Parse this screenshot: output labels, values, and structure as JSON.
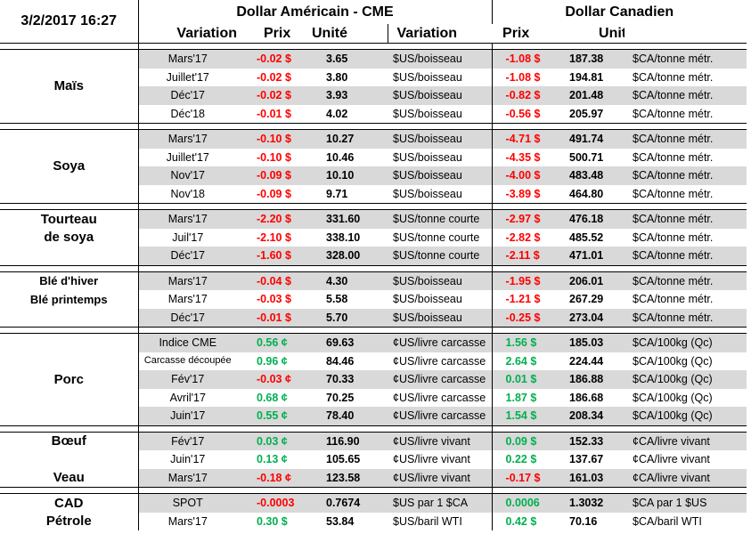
{
  "header": {
    "date": "3/2/2017 16:27",
    "usd_title": "Dollar Américain - CME",
    "cad_title": "Dollar Canadien",
    "col_variation": "Variation",
    "col_prix": "Prix",
    "col_unite": "Unité"
  },
  "colors": {
    "negative": "#ff0000",
    "positive": "#00b050",
    "shade": "#d9d9d9"
  },
  "groups": [
    {
      "name": [
        "Maïs"
      ],
      "rows": [
        {
          "month": "Mars'17",
          "usd_var": "-0.02 $",
          "usd_price": "3.65",
          "usd_unit": "$US/boisseau",
          "cad_var": "-1.08 $",
          "cad_price": "187.38",
          "cad_unit": "$CA/tonne métr.",
          "sign": "neg",
          "csign": "neg"
        },
        {
          "month": "Juillet'17",
          "usd_var": "-0.02 $",
          "usd_price": "3.80",
          "usd_unit": "$US/boisseau",
          "cad_var": "-1.08 $",
          "cad_price": "194.81",
          "cad_unit": "$CA/tonne métr.",
          "sign": "neg",
          "csign": "neg"
        },
        {
          "month": "Déc'17",
          "usd_var": "-0.02 $",
          "usd_price": "3.93",
          "usd_unit": "$US/boisseau",
          "cad_var": "-0.82 $",
          "cad_price": "201.48",
          "cad_unit": "$CA/tonne métr.",
          "sign": "neg",
          "csign": "neg"
        },
        {
          "month": "Déc'18",
          "usd_var": "-0.01 $",
          "usd_price": "4.02",
          "usd_unit": "$US/boisseau",
          "cad_var": "-0.56 $",
          "cad_price": "205.97",
          "cad_unit": "$CA/tonne métr.",
          "sign": "neg",
          "csign": "neg"
        }
      ]
    },
    {
      "name": [
        "Soya"
      ],
      "rows": [
        {
          "month": "Mars'17",
          "usd_var": "-0.10 $",
          "usd_price": "10.27",
          "usd_unit": "$US/boisseau",
          "cad_var": "-4.71 $",
          "cad_price": "491.74",
          "cad_unit": "$CA/tonne métr.",
          "sign": "neg",
          "csign": "neg"
        },
        {
          "month": "Juillet'17",
          "usd_var": "-0.10 $",
          "usd_price": "10.46",
          "usd_unit": "$US/boisseau",
          "cad_var": "-4.35 $",
          "cad_price": "500.71",
          "cad_unit": "$CA/tonne métr.",
          "sign": "neg",
          "csign": "neg"
        },
        {
          "month": "Nov'17",
          "usd_var": "-0.09 $",
          "usd_price": "10.10",
          "usd_unit": "$US/boisseau",
          "cad_var": "-4.00 $",
          "cad_price": "483.48",
          "cad_unit": "$CA/tonne métr.",
          "sign": "neg",
          "csign": "neg"
        },
        {
          "month": "Nov'18",
          "usd_var": "-0.09 $",
          "usd_price": "9.71",
          "usd_unit": "$US/boisseau",
          "cad_var": "-3.89 $",
          "cad_price": "464.80",
          "cad_unit": "$CA/tonne métr.",
          "sign": "neg",
          "csign": "neg"
        }
      ]
    },
    {
      "name": [
        "Tourteau",
        "de soya"
      ],
      "rows": [
        {
          "month": "Mars'17",
          "usd_var": "-2.20 $",
          "usd_price": "331.60",
          "usd_unit": "$US/tonne courte",
          "cad_var": "-2.97 $",
          "cad_price": "476.18",
          "cad_unit": "$CA/tonne métr.",
          "sign": "neg",
          "csign": "neg"
        },
        {
          "month": "Juil'17",
          "usd_var": "-2.10 $",
          "usd_price": "338.10",
          "usd_unit": "$US/tonne courte",
          "cad_var": "-2.82 $",
          "cad_price": "485.52",
          "cad_unit": "$CA/tonne métr.",
          "sign": "neg",
          "csign": "neg"
        },
        {
          "month": "Déc'17",
          "usd_var": "-1.60 $",
          "usd_price": "328.00",
          "usd_unit": "$US/tonne courte",
          "cad_var": "-2.11 $",
          "cad_price": "471.01",
          "cad_unit": "$CA/tonne métr.",
          "sign": "neg",
          "csign": "neg"
        }
      ]
    },
    {
      "name": [
        "Blé d'hiver",
        "Blé printemps"
      ],
      "rows": [
        {
          "month": "Mars'17",
          "usd_var": "-0.04 $",
          "usd_price": "4.30",
          "usd_unit": "$US/boisseau",
          "cad_var": "-1.95 $",
          "cad_price": "206.01",
          "cad_unit": "$CA/tonne métr.",
          "sign": "neg",
          "csign": "neg"
        },
        {
          "month": "Mars'17",
          "usd_var": "-0.03 $",
          "usd_price": "5.58",
          "usd_unit": "$US/boisseau",
          "cad_var": "-1.21 $",
          "cad_price": "267.29",
          "cad_unit": "$CA/tonne métr.",
          "sign": "neg",
          "csign": "neg"
        },
        {
          "month": "Déc'17",
          "usd_var": "-0.01 $",
          "usd_price": "5.70",
          "usd_unit": "$US/boisseau",
          "cad_var": "-0.25 $",
          "cad_price": "273.04",
          "cad_unit": "$CA/tonne métr.",
          "sign": "neg",
          "csign": "neg"
        }
      ]
    },
    {
      "name": [
        "Porc"
      ],
      "rows": [
        {
          "month": "Indice CME",
          "usd_var": "0.56 ¢",
          "usd_price": "69.63",
          "usd_unit": "¢US/livre carcasse",
          "cad_var": "1.56 $",
          "cad_price": "185.03",
          "cad_unit": "$CA/100kg (Qc)",
          "sign": "pos",
          "csign": "pos"
        },
        {
          "month": "Carcasse découpée",
          "usd_var": "0.96 ¢",
          "usd_price": "84.46",
          "usd_unit": "¢US/livre carcasse",
          "cad_var": "2.64 $",
          "cad_price": "224.44",
          "cad_unit": "$CA/100kg (Qc)",
          "sign": "pos",
          "csign": "pos",
          "small": true
        },
        {
          "month": "Fév'17",
          "usd_var": "-0.03 ¢",
          "usd_price": "70.33",
          "usd_unit": "¢US/livre carcasse",
          "cad_var": "0.01 $",
          "cad_price": "186.88",
          "cad_unit": "$CA/100kg (Qc)",
          "sign": "neg",
          "csign": "pos"
        },
        {
          "month": "Avril'17",
          "usd_var": "0.68 ¢",
          "usd_price": "70.25",
          "usd_unit": "¢US/livre carcasse",
          "cad_var": "1.87 $",
          "cad_price": "186.68",
          "cad_unit": "$CA/100kg (Qc)",
          "sign": "pos",
          "csign": "pos"
        },
        {
          "month": "Juin'17",
          "usd_var": "0.55 ¢",
          "usd_price": "78.40",
          "usd_unit": "¢US/livre carcasse",
          "cad_var": "1.54 $",
          "cad_price": "208.34",
          "cad_unit": "$CA/100kg (Qc)",
          "sign": "pos",
          "csign": "pos"
        }
      ]
    },
    {
      "name": [
        "Bœuf",
        "Veau"
      ],
      "rows": [
        {
          "month": "Fév'17",
          "usd_var": "0.03 ¢",
          "usd_price": "116.90",
          "usd_unit": "¢US/livre vivant",
          "cad_var": "0.09 $",
          "cad_price": "152.33",
          "cad_unit": "¢CA/livre vivant",
          "sign": "pos",
          "csign": "pos"
        },
        {
          "month": "Juin'17",
          "usd_var": "0.13 ¢",
          "usd_price": "105.65",
          "usd_unit": "¢US/livre vivant",
          "cad_var": "0.22 $",
          "cad_price": "137.67",
          "cad_unit": "¢CA/livre vivant",
          "sign": "pos",
          "csign": "pos"
        },
        {
          "month": "Mars'17",
          "usd_var": "-0.18 ¢",
          "usd_price": "123.58",
          "usd_unit": "¢US/livre vivant",
          "cad_var": "-0.17 $",
          "cad_price": "161.03",
          "cad_unit": "¢CA/livre vivant",
          "sign": "neg",
          "csign": "neg"
        }
      ]
    },
    {
      "name": [
        "CAD",
        "Pétrole"
      ],
      "rows": [
        {
          "month": "SPOT",
          "usd_var": "-0.0003",
          "usd_price": "0.7674",
          "usd_unit": "$US par 1 $CA",
          "cad_var": "0.0006",
          "cad_price": "1.3032",
          "cad_unit": "$CA par 1 $US",
          "sign": "neg",
          "csign": "pos"
        },
        {
          "month": "Mars'17",
          "usd_var": "0.30 $",
          "usd_price": "53.84",
          "usd_unit": "$US/baril WTI",
          "cad_var": "0.42 $",
          "cad_price": "70.16",
          "cad_unit": "$CA/baril WTI",
          "sign": "pos",
          "csign": "pos"
        }
      ]
    }
  ]
}
